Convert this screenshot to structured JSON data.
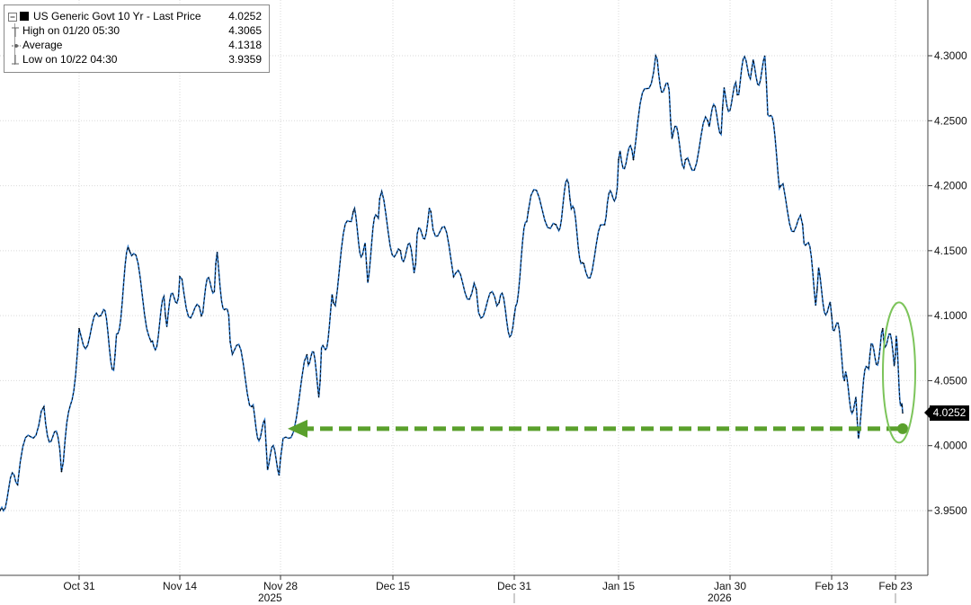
{
  "legend": {
    "title": "US Generic Govt 10 Yr - Last Price",
    "last_value": "4.0252",
    "rows": [
      {
        "label": "High on 01/20 05:30",
        "value": "4.3065"
      },
      {
        "label": "Average",
        "value": "4.1318"
      },
      {
        "label": "Low on 10/22 04:30",
        "value": "3.9359"
      }
    ]
  },
  "badge": {
    "value": "4.0252",
    "color": "#000000"
  },
  "colors": {
    "line_up": "#000000",
    "line_down": "#2f7fd6",
    "annotation": "#5aa02c",
    "annotation_ellipse": "#7cc45a",
    "grid": "#d9d9d9"
  },
  "chart_data": {
    "type": "line",
    "title": "US Generic Govt 10 Yr - Last Price",
    "xlabel": "",
    "ylabel": "",
    "ylim": [
      3.9,
      4.33
    ],
    "y_ticks": [
      "3.9500",
      "4.0000",
      "4.0500",
      "4.1000",
      "4.1500",
      "4.2000",
      "4.2500",
      "4.3000"
    ],
    "x_ticks": [
      "Oct 31",
      "Nov 14",
      "Nov 28",
      "Dec 15",
      "Dec 31",
      "Jan 15",
      "Jan 30",
      "Feb 13",
      "Feb 23"
    ],
    "year_labels": [
      "2025",
      "2026"
    ],
    "grid": true,
    "legend_position": "top-left",
    "series": [
      {
        "name": "US Generic Govt 10 Yr - Last Price",
        "x": [
          "Oct 22",
          "Oct 24",
          "Oct 27",
          "Oct 29",
          "Oct 31",
          "Nov 3",
          "Nov 5",
          "Nov 7",
          "Nov 10",
          "Nov 12",
          "Nov 14",
          "Nov 17",
          "Nov 19",
          "Nov 21",
          "Nov 24",
          "Nov 26",
          "Nov 28",
          "Dec 2",
          "Dec 4",
          "Dec 6",
          "Dec 9",
          "Dec 11",
          "Dec 13",
          "Dec 16",
          "Dec 18",
          "Dec 20",
          "Dec 23",
          "Dec 26",
          "Dec 29",
          "Dec 31",
          "Jan 2",
          "Jan 6",
          "Jan 8",
          "Jan 10",
          "Jan 13",
          "Jan 15",
          "Jan 17",
          "Jan 20",
          "Jan 22",
          "Jan 24",
          "Jan 27",
          "Jan 29",
          "Jan 31",
          "Feb 2",
          "Feb 4",
          "Feb 6",
          "Feb 9",
          "Feb 11",
          "Feb 13",
          "Feb 15",
          "Feb 17",
          "Feb 19",
          "Feb 21",
          "Feb 23",
          "Feb 24"
        ],
        "values": [
          3.95,
          3.97,
          4.03,
          3.98,
          4.09,
          4.1,
          4.07,
          4.15,
          4.08,
          4.1,
          4.13,
          4.1,
          4.14,
          4.08,
          4.03,
          4.0,
          3.99,
          4.07,
          4.05,
          4.11,
          4.18,
          4.14,
          4.19,
          4.15,
          4.14,
          4.18,
          4.13,
          4.12,
          4.11,
          4.1,
          4.18,
          4.17,
          4.19,
          4.14,
          4.17,
          4.22,
          4.22,
          4.3,
          4.25,
          4.22,
          4.25,
          4.26,
          4.27,
          4.29,
          4.28,
          4.2,
          4.17,
          4.12,
          4.1,
          4.05,
          4.02,
          4.07,
          4.09,
          4.07,
          4.0252
        ]
      }
    ],
    "annotations": [
      {
        "type": "dashed-arrow",
        "from": {
          "x": "Feb 24",
          "y": 4.013
        },
        "to": {
          "x": "Nov 28",
          "y": 4.013
        }
      },
      {
        "type": "ellipse",
        "around": {
          "x": "Feb 23",
          "y": 4.05
        }
      }
    ]
  }
}
